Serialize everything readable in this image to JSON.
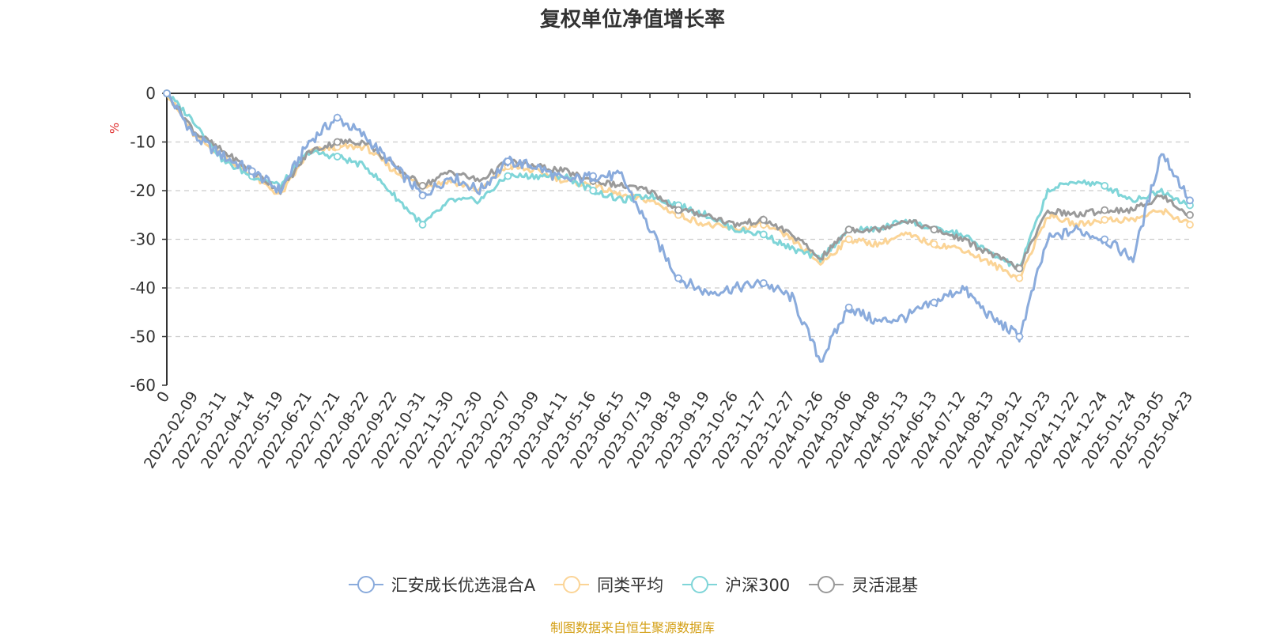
{
  "title": "复权单位净值增长率",
  "source_note": "制图数据来自恒生聚源数据库",
  "colors": {
    "series0": "#8aabdc",
    "series1": "#fbd496",
    "series2": "#7fd5d8",
    "series3": "#9a9a9a",
    "source": "#d4a017",
    "ylabel": "#e03030",
    "axis": "#333333",
    "grid": "#cccccc"
  },
  "chart_data": {
    "type": "line",
    "title": "复权单位净值增长率",
    "ylabel": "%",
    "ylim": [
      -60,
      0
    ],
    "yticks": [
      "0",
      "-10",
      "-20",
      "-30",
      "-40",
      "-50",
      "-60"
    ],
    "ytick_values": [
      0,
      -10,
      -20,
      -30,
      -40,
      -50,
      -60
    ],
    "grid": "horizontal dashed",
    "legend_position": "bottom",
    "x": [
      "0",
      "2022-02-09",
      "2022-03-11",
      "2022-04-14",
      "2022-05-19",
      "2022-06-21",
      "2022-07-21",
      "2022-08-22",
      "2022-09-22",
      "2022-10-31",
      "2022-11-30",
      "2022-12-30",
      "2023-02-07",
      "2023-03-09",
      "2023-04-11",
      "2023-05-16",
      "2023-06-15",
      "2023-07-19",
      "2023-08-18",
      "2023-09-19",
      "2023-10-26",
      "2023-11-27",
      "2023-12-27",
      "2024-01-26",
      "2024-03-06",
      "2024-04-08",
      "2024-05-13",
      "2024-06-13",
      "2024-07-12",
      "2024-08-13",
      "2024-09-12",
      "2024-10-23",
      "2024-11-22",
      "2024-12-24",
      "2025-01-24",
      "2025-03-05",
      "2025-04-23"
    ],
    "series": [
      {
        "name": "汇安成长优选混合A",
        "values": [
          0,
          -9,
          -13,
          -16,
          -20,
          -10,
          -5,
          -9,
          -15,
          -21,
          -17,
          -20,
          -14,
          -15,
          -18,
          -17,
          -17,
          -28,
          -38,
          -41,
          -40,
          -39,
          -42,
          -55,
          -44,
          -47,
          -46,
          -43,
          -40,
          -46,
          -50,
          -30,
          -28,
          -30,
          -34,
          -12,
          -22
        ]
      },
      {
        "name": "同类平均",
        "values": [
          0,
          -9,
          -13,
          -17,
          -21,
          -12,
          -11,
          -11,
          -16,
          -19,
          -18,
          -20,
          -15,
          -16,
          -18,
          -19,
          -21,
          -22,
          -25,
          -27,
          -28,
          -27,
          -30,
          -35,
          -30,
          -31,
          -29,
          -31,
          -32,
          -35,
          -38,
          -25,
          -27,
          -26,
          -26,
          -24,
          -27
        ]
      },
      {
        "name": "沪深300",
        "values": [
          0,
          -6,
          -14,
          -17,
          -19,
          -12,
          -13,
          -15,
          -21,
          -27,
          -22,
          -22,
          -17,
          -17,
          -17,
          -20,
          -22,
          -21,
          -23,
          -25,
          -28,
          -29,
          -32,
          -34,
          -28,
          -28,
          -26,
          -28,
          -29,
          -33,
          -36,
          -20,
          -18,
          -19,
          -22,
          -20,
          -23
        ]
      },
      {
        "name": "灵活混基",
        "values": [
          0,
          -8,
          -12,
          -16,
          -20,
          -12,
          -10,
          -10,
          -15,
          -19,
          -16,
          -18,
          -14,
          -15,
          -16,
          -18,
          -19,
          -20,
          -24,
          -25,
          -27,
          -26,
          -29,
          -34,
          -28,
          -28,
          -26,
          -28,
          -30,
          -33,
          -36,
          -24,
          -25,
          -24,
          -24,
          -21,
          -25
        ]
      }
    ]
  }
}
